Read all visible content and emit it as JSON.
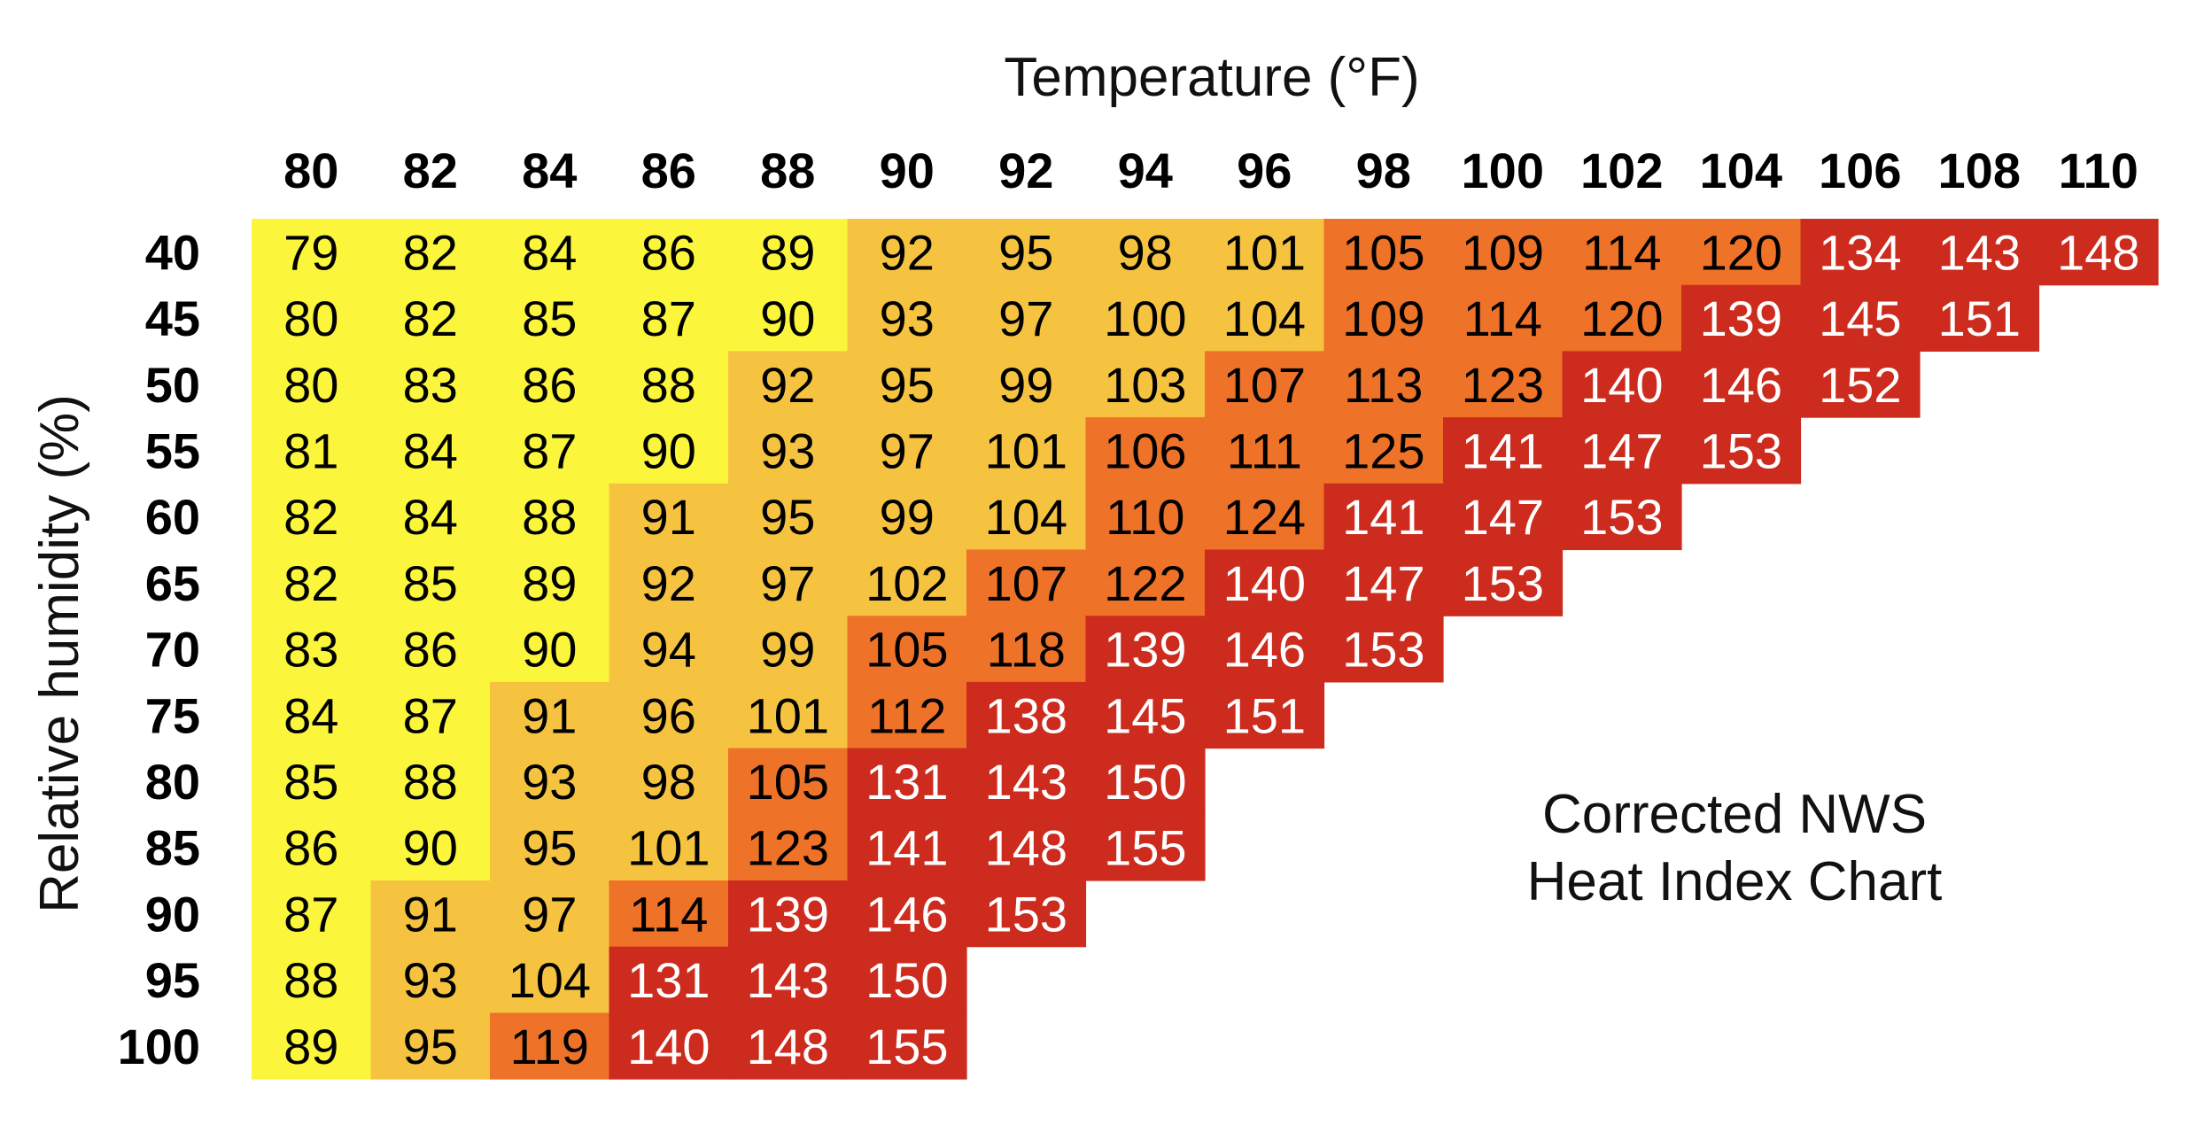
{
  "chart_data": {
    "type": "heatmap",
    "xlabel": "Temperature (°F)",
    "ylabel": "Relative humidity (%)",
    "x": [
      "80",
      "82",
      "84",
      "86",
      "88",
      "90",
      "92",
      "94",
      "96",
      "98",
      "100",
      "102",
      "104",
      "106",
      "108",
      "110"
    ],
    "y": [
      "40",
      "45",
      "50",
      "55",
      "60",
      "65",
      "70",
      "75",
      "80",
      "85",
      "90",
      "95",
      "100"
    ],
    "values": [
      [
        79,
        82,
        84,
        86,
        89,
        92,
        95,
        98,
        101,
        105,
        109,
        114,
        120,
        134,
        143,
        148
      ],
      [
        80,
        82,
        85,
        87,
        90,
        93,
        97,
        100,
        104,
        109,
        114,
        120,
        139,
        145,
        151,
        null
      ],
      [
        80,
        83,
        86,
        88,
        92,
        95,
        99,
        103,
        107,
        113,
        123,
        140,
        146,
        152,
        null,
        null
      ],
      [
        81,
        84,
        87,
        90,
        93,
        97,
        101,
        106,
        111,
        125,
        141,
        147,
        153,
        null,
        null,
        null
      ],
      [
        82,
        84,
        88,
        91,
        95,
        99,
        104,
        110,
        124,
        141,
        147,
        153,
        null,
        null,
        null,
        null
      ],
      [
        82,
        85,
        89,
        92,
        97,
        102,
        107,
        122,
        140,
        147,
        153,
        null,
        null,
        null,
        null,
        null
      ],
      [
        83,
        86,
        90,
        94,
        99,
        105,
        118,
        139,
        146,
        153,
        null,
        null,
        null,
        null,
        null,
        null
      ],
      [
        84,
        87,
        91,
        96,
        101,
        112,
        138,
        145,
        151,
        null,
        null,
        null,
        null,
        null,
        null,
        null
      ],
      [
        85,
        88,
        93,
        98,
        105,
        131,
        143,
        150,
        null,
        null,
        null,
        null,
        null,
        null,
        null,
        null
      ],
      [
        86,
        90,
        95,
        101,
        123,
        141,
        148,
        155,
        null,
        null,
        null,
        null,
        null,
        null,
        null,
        null
      ],
      [
        87,
        91,
        97,
        114,
        139,
        146,
        153,
        null,
        null,
        null,
        null,
        null,
        null,
        null,
        null,
        null
      ],
      [
        88,
        93,
        104,
        131,
        143,
        150,
        null,
        null,
        null,
        null,
        null,
        null,
        null,
        null,
        null,
        null
      ],
      [
        89,
        95,
        119,
        140,
        148,
        155,
        null,
        null,
        null,
        null,
        null,
        null,
        null,
        null,
        null,
        null
      ]
    ],
    "annotation": [
      "Corrected NWS",
      "Heat Index Chart"
    ],
    "legend": "none",
    "grid": false,
    "color_bands": [
      {
        "max": 90,
        "color": "#fbf63c",
        "text_color": "#000000"
      },
      {
        "max": 104,
        "color": "#f6c341",
        "text_color": "#000000"
      },
      {
        "max": 125,
        "color": "#ee7228",
        "text_color": "#000000"
      },
      {
        "max": 999,
        "color": "#cc2b1d",
        "text_color": "#ffffff"
      }
    ]
  }
}
